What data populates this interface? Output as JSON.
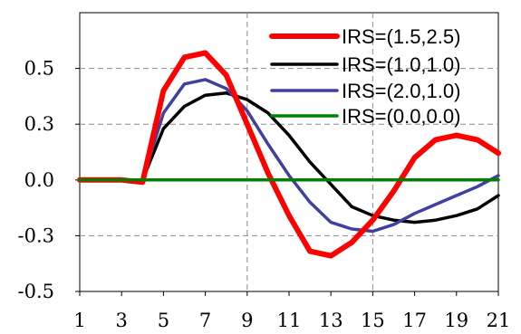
{
  "chart_data": {
    "type": "line",
    "title": "",
    "xlabel": "",
    "ylabel": "",
    "xlim": [
      1,
      21
    ],
    "ylim": [
      -0.5,
      0.75
    ],
    "x_ticks": [
      1,
      3,
      5,
      7,
      9,
      11,
      13,
      15,
      17,
      19,
      21
    ],
    "x_tick_labels": [
      "1",
      "3",
      "5",
      "7",
      "9",
      "11",
      "13",
      "15",
      "17",
      "19",
      "21"
    ],
    "y_ticks": [
      -0.5,
      -0.25,
      0.0,
      0.25,
      0.5
    ],
    "y_tick_labels": [
      "-0.5",
      "-0.3",
      "0.0",
      "0.3",
      "0.5"
    ],
    "grid": "dashed at x=9, x=15 and every y tick",
    "legend_position": "top-right",
    "x": [
      1,
      2,
      3,
      4,
      5,
      6,
      7,
      8,
      9,
      10,
      11,
      12,
      13,
      14,
      15,
      16,
      17,
      18,
      19,
      20,
      21
    ],
    "series": [
      {
        "name": "IRS=(1.5,2.5)",
        "color": "#ff0000",
        "line_width": "thick",
        "values": [
          0.0,
          0.0,
          0.0,
          -0.01,
          0.4,
          0.55,
          0.57,
          0.47,
          0.25,
          0.03,
          -0.16,
          -0.32,
          -0.34,
          -0.28,
          -0.18,
          -0.05,
          0.1,
          0.18,
          0.2,
          0.18,
          0.12
        ]
      },
      {
        "name": "IRS=(1.0,1.0)",
        "color": "#000000",
        "line_width": "medium",
        "values": [
          0.0,
          0.0,
          0.0,
          0.0,
          0.23,
          0.33,
          0.38,
          0.39,
          0.36,
          0.3,
          0.2,
          0.08,
          -0.02,
          -0.12,
          -0.16,
          -0.18,
          -0.19,
          -0.18,
          -0.16,
          -0.13,
          -0.07
        ]
      },
      {
        "name": "IRS=(2.0,1.0)",
        "color": "#4040a0",
        "line_width": "medium",
        "values": [
          0.0,
          0.0,
          0.0,
          0.0,
          0.3,
          0.43,
          0.45,
          0.41,
          0.31,
          0.16,
          0.02,
          -0.1,
          -0.19,
          -0.22,
          -0.23,
          -0.2,
          -0.15,
          -0.11,
          -0.07,
          -0.03,
          0.02
        ]
      },
      {
        "name": "IRS=(0.0,0.0)",
        "color": "#008000",
        "line_width": "medium",
        "values": [
          0.0,
          0.0,
          0.0,
          0.0,
          0.0,
          0.0,
          0.0,
          0.0,
          0.0,
          0.0,
          0.0,
          0.0,
          0.0,
          0.0,
          0.0,
          0.0,
          0.0,
          0.0,
          0.0,
          0.0,
          0.0
        ]
      }
    ]
  }
}
